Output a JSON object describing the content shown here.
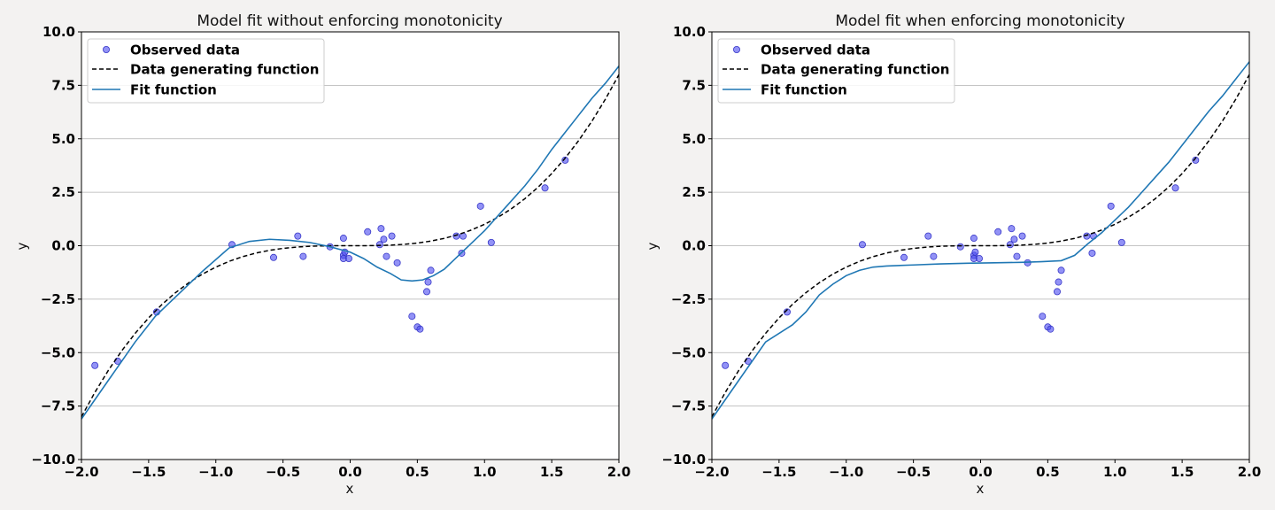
{
  "chart_data": [
    {
      "type": "scatter",
      "title": "Model fit without enforcing monotonicity",
      "xlabel": "x",
      "ylabel": "y",
      "xlim": [
        -2.0,
        2.0
      ],
      "ylim": [
        -10.0,
        10.0
      ],
      "xticks": [
        "−2.0",
        "−1.5",
        "−1.0",
        "−0.5",
        "0.0",
        "0.5",
        "1.0",
        "1.5",
        "2.0"
      ],
      "yticks": [
        "−10.0",
        "−7.5",
        "−5.0",
        "−2.5",
        "0.0",
        "2.5",
        "5.0",
        "7.5",
        "10.0"
      ],
      "grid": "horizontal",
      "legend_position": "top-left",
      "series": [
        {
          "name": "Observed data",
          "kind": "scatter",
          "color": "#4a4af0",
          "points": [
            [
              -1.9,
              -5.6
            ],
            [
              -1.73,
              -5.4
            ],
            [
              -1.44,
              -3.1
            ],
            [
              -0.88,
              0.05
            ],
            [
              -0.57,
              -0.55
            ],
            [
              -0.39,
              0.45
            ],
            [
              -0.35,
              -0.5
            ],
            [
              -0.15,
              -0.05
            ],
            [
              -0.05,
              0.35
            ],
            [
              -0.05,
              -0.45
            ],
            [
              -0.04,
              -0.3
            ],
            [
              -0.05,
              -0.6
            ],
            [
              -0.01,
              -0.6
            ],
            [
              0.13,
              0.65
            ],
            [
              0.23,
              0.8
            ],
            [
              0.22,
              0.05
            ],
            [
              0.25,
              0.3
            ],
            [
              0.27,
              -0.5
            ],
            [
              0.31,
              0.45
            ],
            [
              0.35,
              -0.8
            ],
            [
              0.46,
              -3.3
            ],
            [
              0.5,
              -3.8
            ],
            [
              0.52,
              -3.9
            ],
            [
              0.57,
              -2.15
            ],
            [
              0.58,
              -1.7
            ],
            [
              0.6,
              -1.15
            ],
            [
              0.79,
              0.45
            ],
            [
              0.83,
              -0.35
            ],
            [
              0.84,
              0.45
            ],
            [
              0.97,
              1.85
            ],
            [
              1.05,
              0.15
            ],
            [
              1.45,
              2.7
            ],
            [
              1.6,
              4.0
            ]
          ]
        },
        {
          "name": "Data generating function",
          "kind": "line",
          "style": "dashed",
          "color": "#000000",
          "x": [
            -2.0,
            -1.9,
            -1.8,
            -1.7,
            -1.6,
            -1.5,
            -1.4,
            -1.3,
            -1.2,
            -1.1,
            -1.0,
            -0.9,
            -0.8,
            -0.7,
            -0.6,
            -0.5,
            -0.4,
            -0.3,
            -0.2,
            -0.1,
            0.0,
            0.1,
            0.2,
            0.3,
            0.4,
            0.5,
            0.6,
            0.7,
            0.8,
            0.9,
            1.0,
            1.1,
            1.2,
            1.3,
            1.4,
            1.5,
            1.6,
            1.7,
            1.8,
            1.9,
            2.0
          ],
          "y": [
            -8.0,
            -6.859,
            -5.832,
            -4.913,
            -4.096,
            -3.375,
            -2.744,
            -2.197,
            -1.728,
            -1.331,
            -1.0,
            -0.729,
            -0.512,
            -0.343,
            -0.216,
            -0.125,
            -0.064,
            -0.027,
            -0.008,
            -0.001,
            0.0,
            0.001,
            0.008,
            0.027,
            0.064,
            0.125,
            0.216,
            0.343,
            0.512,
            0.729,
            1.0,
            1.331,
            1.728,
            2.197,
            2.744,
            3.375,
            4.096,
            4.913,
            5.832,
            6.859,
            8.0
          ]
        },
        {
          "name": "Fit function",
          "kind": "line",
          "style": "solid",
          "color": "#1f77b4",
          "x": [
            -2.0,
            -1.8,
            -1.6,
            -1.45,
            -1.3,
            -1.1,
            -0.9,
            -0.75,
            -0.6,
            -0.45,
            -0.3,
            -0.15,
            0.0,
            0.1,
            0.2,
            0.3,
            0.38,
            0.46,
            0.54,
            0.62,
            0.7,
            0.8,
            0.9,
            1.0,
            1.1,
            1.2,
            1.3,
            1.4,
            1.5,
            1.6,
            1.7,
            1.8,
            1.9,
            2.0
          ],
          "y": [
            -8.1,
            -6.3,
            -4.5,
            -3.3,
            -2.4,
            -1.2,
            -0.1,
            0.2,
            0.3,
            0.25,
            0.15,
            -0.05,
            -0.3,
            -0.6,
            -1.0,
            -1.3,
            -1.6,
            -1.65,
            -1.6,
            -1.4,
            -1.1,
            -0.5,
            0.1,
            0.7,
            1.4,
            2.1,
            2.8,
            3.6,
            4.5,
            5.3,
            6.1,
            6.9,
            7.6,
            8.4
          ]
        }
      ]
    },
    {
      "type": "scatter",
      "title": "Model fit when enforcing monotonicity",
      "xlabel": "x",
      "ylabel": "y",
      "xlim": [
        -2.0,
        2.0
      ],
      "ylim": [
        -10.0,
        10.0
      ],
      "xticks": [
        "−2.0",
        "−1.5",
        "−1.0",
        "−0.5",
        "0.0",
        "0.5",
        "1.0",
        "1.5",
        "2.0"
      ],
      "yticks": [
        "−10.0",
        "−7.5",
        "−5.0",
        "−2.5",
        "0.0",
        "2.5",
        "5.0",
        "7.5",
        "10.0"
      ],
      "grid": "horizontal",
      "legend_position": "top-left",
      "series": [
        {
          "name": "Observed data",
          "kind": "scatter",
          "color": "#4a4af0",
          "points": [
            [
              -1.9,
              -5.6
            ],
            [
              -1.73,
              -5.4
            ],
            [
              -1.44,
              -3.1
            ],
            [
              -0.88,
              0.05
            ],
            [
              -0.57,
              -0.55
            ],
            [
              -0.39,
              0.45
            ],
            [
              -0.35,
              -0.5
            ],
            [
              -0.15,
              -0.05
            ],
            [
              -0.05,
              0.35
            ],
            [
              -0.05,
              -0.45
            ],
            [
              -0.04,
              -0.3
            ],
            [
              -0.05,
              -0.6
            ],
            [
              -0.01,
              -0.6
            ],
            [
              0.13,
              0.65
            ],
            [
              0.23,
              0.8
            ],
            [
              0.22,
              0.05
            ],
            [
              0.25,
              0.3
            ],
            [
              0.27,
              -0.5
            ],
            [
              0.31,
              0.45
            ],
            [
              0.35,
              -0.8
            ],
            [
              0.46,
              -3.3
            ],
            [
              0.5,
              -3.8
            ],
            [
              0.52,
              -3.9
            ],
            [
              0.57,
              -2.15
            ],
            [
              0.58,
              -1.7
            ],
            [
              0.6,
              -1.15
            ],
            [
              0.79,
              0.45
            ],
            [
              0.83,
              -0.35
            ],
            [
              0.84,
              0.45
            ],
            [
              0.97,
              1.85
            ],
            [
              1.05,
              0.15
            ],
            [
              1.45,
              2.7
            ],
            [
              1.6,
              4.0
            ]
          ]
        },
        {
          "name": "Data generating function",
          "kind": "line",
          "style": "dashed",
          "color": "#000000",
          "x": [
            -2.0,
            -1.9,
            -1.8,
            -1.7,
            -1.6,
            -1.5,
            -1.4,
            -1.3,
            -1.2,
            -1.1,
            -1.0,
            -0.9,
            -0.8,
            -0.7,
            -0.6,
            -0.5,
            -0.4,
            -0.3,
            -0.2,
            -0.1,
            0.0,
            0.1,
            0.2,
            0.3,
            0.4,
            0.5,
            0.6,
            0.7,
            0.8,
            0.9,
            1.0,
            1.1,
            1.2,
            1.3,
            1.4,
            1.5,
            1.6,
            1.7,
            1.8,
            1.9,
            2.0
          ],
          "y": [
            -8.0,
            -6.859,
            -5.832,
            -4.913,
            -4.096,
            -3.375,
            -2.744,
            -2.197,
            -1.728,
            -1.331,
            -1.0,
            -0.729,
            -0.512,
            -0.343,
            -0.216,
            -0.125,
            -0.064,
            -0.027,
            -0.008,
            -0.001,
            0.0,
            0.001,
            0.008,
            0.027,
            0.064,
            0.125,
            0.216,
            0.343,
            0.512,
            0.729,
            1.0,
            1.331,
            1.728,
            2.197,
            2.744,
            3.375,
            4.096,
            4.913,
            5.832,
            6.859,
            8.0
          ]
        },
        {
          "name": "Fit function",
          "kind": "line",
          "style": "solid",
          "color": "#1f77b4",
          "x": [
            -2.0,
            -1.8,
            -1.6,
            -1.4,
            -1.3,
            -1.2,
            -1.1,
            -1.0,
            -0.9,
            -0.8,
            -0.7,
            -0.5,
            -0.3,
            -0.1,
            0.1,
            0.3,
            0.45,
            0.6,
            0.7,
            0.8,
            0.9,
            1.0,
            1.1,
            1.2,
            1.3,
            1.4,
            1.5,
            1.6,
            1.7,
            1.8,
            1.9,
            2.0
          ],
          "y": [
            -8.1,
            -6.3,
            -4.5,
            -3.7,
            -3.1,
            -2.3,
            -1.8,
            -1.4,
            -1.15,
            -1.0,
            -0.95,
            -0.9,
            -0.85,
            -0.82,
            -0.8,
            -0.78,
            -0.75,
            -0.7,
            -0.45,
            0.1,
            0.6,
            1.2,
            1.8,
            2.5,
            3.2,
            3.9,
            4.7,
            5.5,
            6.3,
            7.0,
            7.8,
            8.6
          ]
        }
      ]
    }
  ]
}
